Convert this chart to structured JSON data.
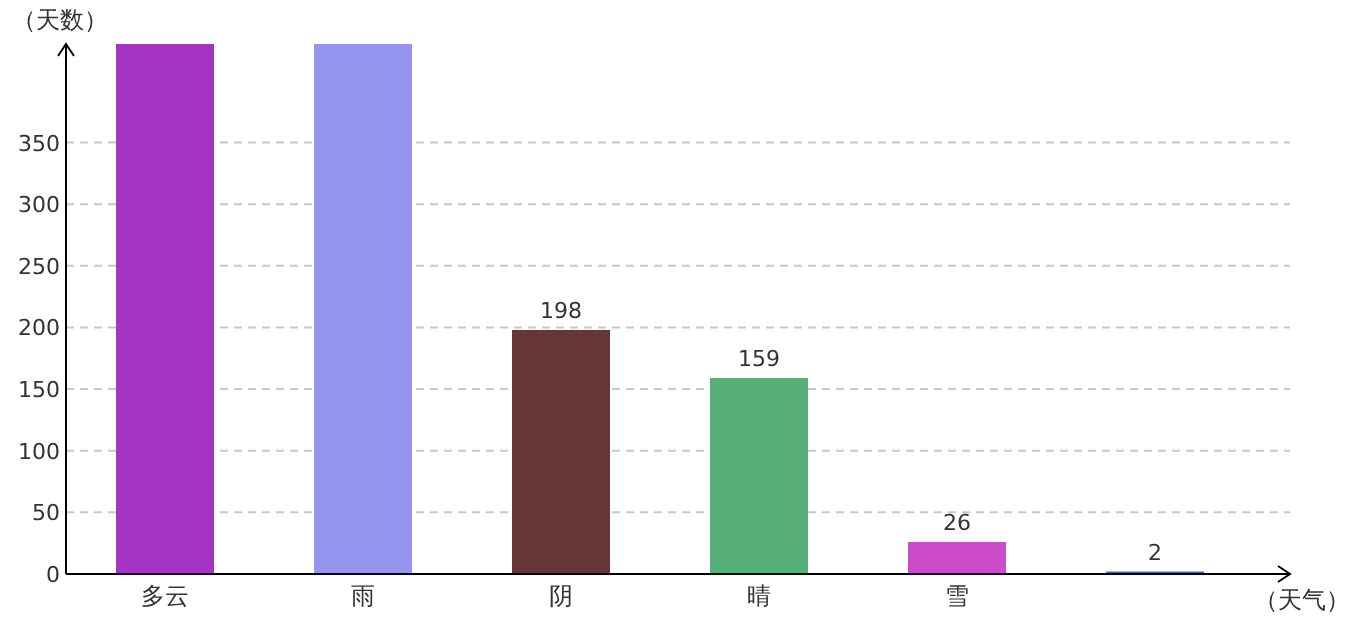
{
  "chart_data": {
    "type": "bar",
    "xlabel": "（天气）",
    "ylabel": "（天数）",
    "categories": [
      "多云",
      "雨",
      "阴",
      "晴",
      "雪",
      null
    ],
    "values": [
      430,
      430,
      198,
      159,
      26,
      2
    ],
    "value_labels": [
      null,
      null,
      "198",
      "159",
      "26",
      "2"
    ],
    "colors": [
      "#a335c2",
      "#9595ee",
      "#663538",
      "#57b07a",
      "#cc4ccc",
      "#3b6ea5"
    ],
    "ylim": [
      0,
      430
    ],
    "yticks": [
      0,
      50,
      100,
      150,
      200,
      250,
      300,
      350
    ],
    "grid": "y"
  }
}
